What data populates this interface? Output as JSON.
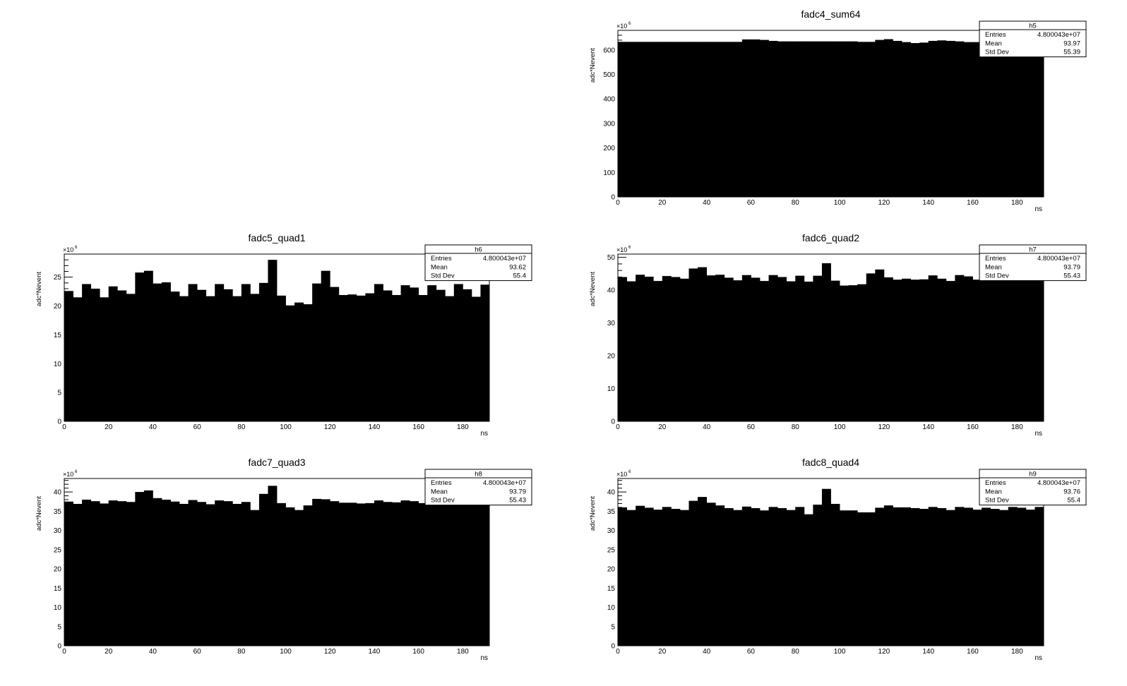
{
  "chart_data": [
    {
      "type": "bar",
      "title": "fadc4_sum64",
      "xlabel": "ns",
      "ylabel": "adc*Nevent",
      "multiplier": "×10",
      "exponent": "6",
      "xlim": [
        0,
        192
      ],
      "ylim": [
        0,
        680
      ],
      "xticks": [
        0,
        20,
        40,
        60,
        80,
        100,
        120,
        140,
        160,
        180
      ],
      "yticks": [
        0,
        100,
        200,
        300,
        400,
        500,
        600
      ],
      "stats": {
        "name": "h5",
        "rows": [
          {
            "label": "Entries",
            "value": "4.800043e+07"
          },
          {
            "label": "Mean",
            "value": "93.97"
          },
          {
            "label": "Std Dev",
            "value": "55.39"
          }
        ]
      },
      "bin_width": 4,
      "values": [
        633,
        633,
        633,
        633,
        633,
        633,
        633,
        633,
        633,
        633,
        633,
        633,
        633,
        633,
        643,
        643,
        641,
        637,
        635,
        635,
        635,
        635,
        635,
        635,
        635,
        635,
        635,
        633,
        633,
        641,
        644,
        637,
        632,
        628,
        630,
        637,
        639,
        637,
        635,
        632,
        632,
        635,
        633,
        633,
        633,
        633,
        633,
        633
      ]
    },
    {
      "type": "bar",
      "title": "fadc5_quad1",
      "xlabel": "ns",
      "ylabel": "adc*Nevent",
      "multiplier": "×10",
      "exponent": "6",
      "xlim": [
        0,
        192
      ],
      "ylim": [
        0,
        29
      ],
      "xticks": [
        0,
        20,
        40,
        60,
        80,
        100,
        120,
        140,
        160,
        180
      ],
      "yticks": [
        0,
        5,
        10,
        15,
        20,
        25
      ],
      "stats": {
        "name": "h6",
        "rows": [
          {
            "label": "Entries",
            "value": "4.800043e+07"
          },
          {
            "label": "Mean",
            "value": "93.62"
          },
          {
            "label": "Std Dev",
            "value": "55.4"
          }
        ]
      },
      "bin_width": 4,
      "values": [
        22.6,
        21.5,
        23.8,
        23.0,
        21.5,
        23.4,
        22.7,
        22.1,
        25.8,
        26.1,
        23.9,
        24.1,
        22.5,
        21.7,
        23.8,
        22.8,
        21.7,
        23.8,
        22.9,
        21.7,
        23.8,
        22.1,
        24.0,
        28.0,
        21.8,
        20.1,
        20.6,
        20.3,
        23.9,
        26.1,
        23.3,
        21.9,
        22.0,
        21.8,
        22.2,
        23.8,
        22.7,
        21.9,
        23.6,
        23.2,
        21.9,
        23.6,
        22.8,
        21.7,
        23.8,
        22.9,
        21.6,
        23.7
      ]
    },
    {
      "type": "bar",
      "title": "fadc6_quad2",
      "xlabel": "ns",
      "ylabel": "adc*Nevent",
      "multiplier": "×10",
      "exponent": "6",
      "xlim": [
        0,
        192
      ],
      "ylim": [
        0,
        51
      ],
      "xticks": [
        0,
        20,
        40,
        60,
        80,
        100,
        120,
        140,
        160,
        180
      ],
      "yticks": [
        0,
        10,
        20,
        30,
        40,
        50
      ],
      "stats": {
        "name": "h7",
        "rows": [
          {
            "label": "Entries",
            "value": "4.800043e+07"
          },
          {
            "label": "Mean",
            "value": "93.79"
          },
          {
            "label": "Std Dev",
            "value": "55.43"
          }
        ]
      },
      "bin_width": 4,
      "values": [
        44.0,
        42.7,
        44.7,
        44.1,
        42.8,
        44.3,
        44.0,
        43.5,
        46.6,
        47.0,
        44.5,
        44.7,
        43.8,
        43.0,
        44.6,
        43.8,
        42.8,
        44.6,
        44.0,
        42.7,
        44.4,
        42.6,
        44.4,
        48.2,
        42.9,
        41.4,
        41.5,
        41.8,
        45.1,
        46.3,
        43.9,
        43.2,
        43.5,
        43.2,
        43.3,
        44.5,
        43.5,
        42.8,
        44.6,
        44.2,
        43.2,
        43.2,
        43.2,
        43.2,
        43.2,
        43.2,
        43.2,
        43.2
      ]
    },
    {
      "type": "bar",
      "title": "fadc7_quad3",
      "xlabel": "ns",
      "ylabel": "adc*Nevent",
      "multiplier": "×10",
      "exponent": "6",
      "xlim": [
        0,
        192
      ],
      "ylim": [
        0,
        43.5
      ],
      "xticks": [
        0,
        20,
        40,
        60,
        80,
        100,
        120,
        140,
        160,
        180
      ],
      "yticks": [
        0,
        5,
        10,
        15,
        20,
        25,
        30,
        35,
        40
      ],
      "stats": {
        "name": "h8",
        "rows": [
          {
            "label": "Entries",
            "value": "4.800043e+07"
          },
          {
            "label": "Mean",
            "value": "93.79"
          },
          {
            "label": "Std Dev",
            "value": "55.43"
          }
        ]
      },
      "bin_width": 4,
      "values": [
        37.5,
        36.9,
        38.0,
        37.6,
        37.0,
        37.8,
        37.6,
        37.4,
        40.0,
        40.4,
        38.4,
        38.0,
        37.5,
        36.9,
        37.9,
        37.4,
        36.8,
        37.8,
        37.6,
        36.9,
        37.4,
        35.3,
        39.5,
        41.6,
        37.1,
        36.0,
        35.3,
        36.5,
        38.2,
        38.1,
        37.6,
        37.2,
        37.2,
        37.0,
        37.1,
        37.8,
        37.4,
        37.3,
        37.8,
        37.6,
        37.1,
        37.1,
        37.1,
        37.1,
        37.1,
        37.1,
        37.1,
        37.1
      ]
    },
    {
      "type": "bar",
      "title": "fadc8_quad4",
      "xlabel": "ns",
      "ylabel": "adc*Nevent",
      "multiplier": "×10",
      "exponent": "6",
      "xlim": [
        0,
        192
      ],
      "ylim": [
        0,
        43.5
      ],
      "xticks": [
        0,
        20,
        40,
        60,
        80,
        100,
        120,
        140,
        160,
        180
      ],
      "yticks": [
        0,
        5,
        10,
        15,
        20,
        25,
        30,
        35,
        40
      ],
      "stats": {
        "name": "h9",
        "rows": [
          {
            "label": "Entries",
            "value": "4.800043e+07"
          },
          {
            "label": "Mean",
            "value": "93.76"
          },
          {
            "label": "Std Dev",
            "value": "55.4"
          }
        ]
      },
      "bin_width": 4,
      "values": [
        36.0,
        35.3,
        36.4,
        35.9,
        35.4,
        36.1,
        35.6,
        35.3,
        37.7,
        38.7,
        37.2,
        36.5,
        35.8,
        35.3,
        36.2,
        35.8,
        35.2,
        36.1,
        35.8,
        35.3,
        36.1,
        34.2,
        36.7,
        40.8,
        36.9,
        35.2,
        35.2,
        34.7,
        34.7,
        35.9,
        36.5,
        36.0,
        36.0,
        35.8,
        35.6,
        36.1,
        35.8,
        35.3,
        36.1,
        35.9,
        35.4,
        35.9,
        35.6,
        35.3,
        36.1,
        35.9,
        35.4,
        36.1
      ]
    }
  ]
}
